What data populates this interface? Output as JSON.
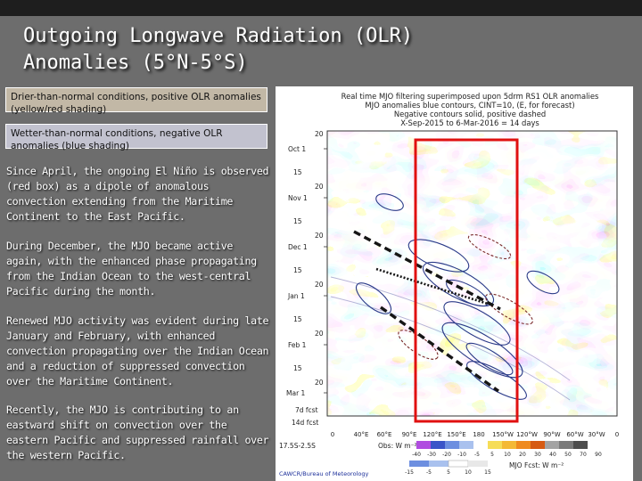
{
  "slide": {
    "title_line1": "Outgoing Longwave Radiation (OLR)",
    "title_line2": "Anomalies (5°N-5°S)"
  },
  "legend": {
    "dry_text": "Drier-than-normal conditions, positive OLR anomalies (yellow/red shading)",
    "wet_text": "Wetter-than-normal conditions, negative OLR anomalies (blue shading)"
  },
  "paragraphs": [
    "Since April, the ongoing El Niño is observed (red box) as a dipole of anomalous convection extending from the Maritime Continent to the East Pacific.",
    "During December, the MJO became active again, with the enhanced phase propagating from the Indian Ocean to the west-central Pacific during the month.",
    "Renewed MJO activity was evident during late January and February, with enhanced convection propagating over the Indian Ocean and a reduction of suppressed convection over the Maritime Continent.",
    "Recently, the MJO is contributing to an eastward shift on convection over the eastern Pacific and suppressed rainfall over the western Pacific."
  ],
  "figure": {
    "header_line1": "Real time MJO filtering superimposed upon 5drm RS1 OLR anomalies",
    "header_line2": "MJO anomalies blue contours, CINT=10, (E, for forecast)",
    "header_line3": "Negative contours solid, positive dashed",
    "header_line4": "X-Sep-2015 to 6-Mar-2016 = 14 days",
    "y_ticks": [
      "Oct 1",
      "15",
      "Nov 1",
      "15",
      "Dec 1",
      "15",
      "Jan 1",
      "15",
      "Feb 1",
      "15",
      "Mar 1"
    ],
    "y_small_ticks": [
      "20",
      "20",
      "20",
      "20",
      "20",
      "20"
    ],
    "forecast_label_1": "7d fcst",
    "forecast_label_2": "14d fcst",
    "x_ticks": [
      "0",
      "40°E",
      "60°E",
      "90°E",
      "120°E",
      "150°E",
      "180",
      "150°W",
      "120°W",
      "90°W",
      "60°W",
      "30°W",
      "0"
    ],
    "range_label": "17.5S-2.5S",
    "obs_label": "Obs: W m⁻²",
    "obs_values": [
      "-40",
      "-30",
      "-20",
      "-10",
      "-5",
      "5",
      "10",
      "20",
      "30",
      "40",
      "50",
      "70",
      "90"
    ],
    "fcst_label": "MJO Fcst: W m⁻²",
    "fcst_values": [
      "-15",
      "-5",
      "5",
      "10",
      "15"
    ],
    "credit": "CAWCR/Bureau of Meteorology",
    "colors": {
      "el_nino_box": "#e01010",
      "mjo_contour": "#2a3a88",
      "negative_deep": "#3a54c8",
      "negative_light": "#a9c1ee",
      "positive_light": "#f6dd58",
      "positive_deep": "#ef8a1e"
    }
  }
}
